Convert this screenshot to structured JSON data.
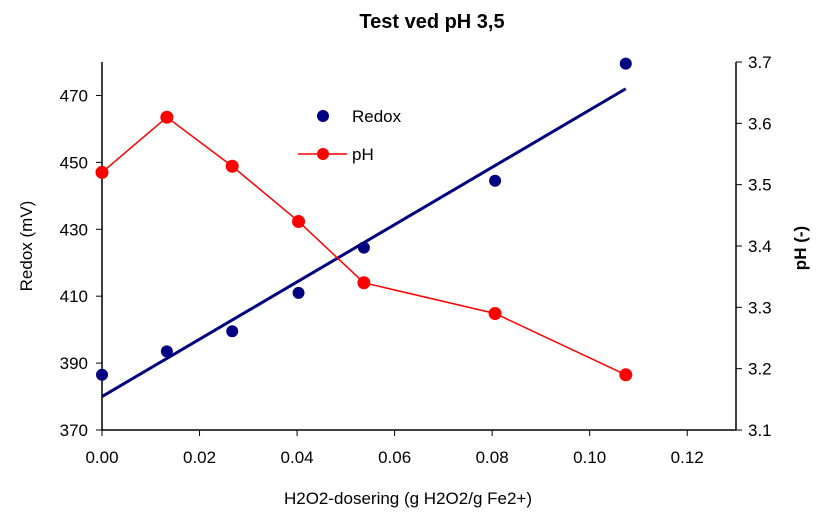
{
  "chart_data": {
    "type": "scatter",
    "title": "Test ved pH 3,5",
    "xlabel": "H2O2-dosering (g H2O2/g Fe2+)",
    "ylabel": "Redox (mV)",
    "y2label": "pH (-)",
    "xlim": [
      0,
      0.13
    ],
    "ylim": [
      370,
      480
    ],
    "y2lim": [
      3.1,
      3.7
    ],
    "x_ticks": [
      "0.00",
      "0.02",
      "0.04",
      "0.06",
      "0.08",
      "0.10",
      "0.12"
    ],
    "y_ticks": [
      "370",
      "390",
      "410",
      "430",
      "450",
      "470"
    ],
    "y2_ticks": [
      "3.1",
      "3.2",
      "3.3",
      "3.4",
      "3.5",
      "3.6",
      "3.7"
    ],
    "grid": false,
    "legend_position": "top-center",
    "series": [
      {
        "name": "Redox",
        "axis": "left",
        "style": "markers",
        "color": "#000080",
        "x": [
          0.0,
          0.0133,
          0.0267,
          0.0403,
          0.0537,
          0.0806,
          0.1074
        ],
        "y": [
          386.5,
          393.5,
          399.5,
          411,
          424.5,
          444.5,
          479.5
        ]
      },
      {
        "name": "pH",
        "axis": "right",
        "style": "line-markers",
        "color": "#ff0000",
        "x": [
          0.0,
          0.0133,
          0.0267,
          0.0403,
          0.0537,
          0.0806,
          0.1074
        ],
        "y": [
          3.52,
          3.61,
          3.53,
          3.44,
          3.34,
          3.29,
          3.19
        ]
      }
    ],
    "trendline": {
      "series": "Redox",
      "color": "#000080",
      "x": [
        0.0,
        0.1074
      ],
      "y": [
        380,
        472
      ]
    }
  }
}
